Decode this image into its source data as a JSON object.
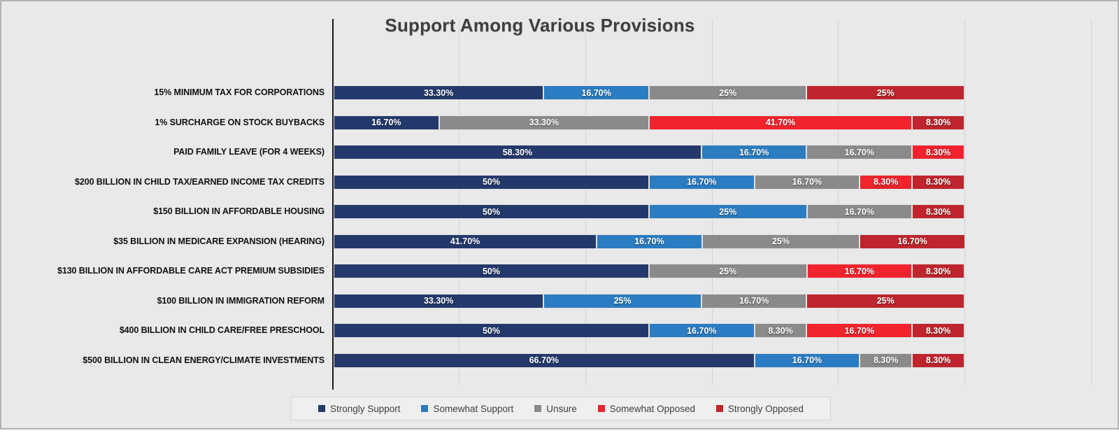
{
  "chart_data": {
    "type": "bar",
    "stacked": true,
    "orientation": "horizontal",
    "title": "Support Among Various Provisions",
    "xlim": [
      0,
      120
    ],
    "gridline_interval_pct": 20,
    "grid": true,
    "legend_position": "bottom",
    "categories": [
      "15% MINIMUM TAX FOR CORPORATIONS",
      "1% SURCHARGE ON STOCK BUYBACKS",
      "PAID FAMILY LEAVE (FOR 4 WEEKS)",
      "$200 BILLION IN CHILD TAX/EARNED INCOME TAX CREDITS",
      "$150 BILLION IN AFFORDABLE HOUSING",
      "$35 BILLION IN MEDICARE EXPANSION (HEARING)",
      "$130 BILLION IN AFFORDABLE CARE ACT PREMIUM SUBSIDIES",
      "$100 BILLION IN IMMIGRATION REFORM",
      "$400 BILLION IN CHILD CARE/FREE PRESCHOOL",
      "$500 BILLION IN CLEAN ENERGY/CLIMATE INVESTMENTS"
    ],
    "series": [
      {
        "name": "Strongly Support",
        "color": "#24396B",
        "values": [
          33.3,
          16.7,
          58.3,
          50,
          50,
          41.7,
          50,
          33.3,
          50,
          66.7
        ],
        "labels": [
          "33.30%",
          "16.70%",
          "58.30%",
          "50%",
          "50%",
          "41.70%",
          "50%",
          "33.30%",
          "50%",
          "66.70%"
        ]
      },
      {
        "name": "Somewhat Support",
        "color": "#2B7CC1",
        "values": [
          16.7,
          0,
          16.7,
          16.7,
          25,
          16.7,
          0,
          25,
          16.7,
          16.7
        ],
        "labels": [
          "16.70%",
          "",
          "16.70%",
          "16.70%",
          "25%",
          "16.70%",
          "",
          "25%",
          "16.70%",
          "16.70%"
        ]
      },
      {
        "name": "Unsure",
        "color": "#8A8A8A",
        "values": [
          25,
          33.3,
          16.7,
          16.7,
          16.7,
          25,
          25,
          16.7,
          8.3,
          8.3
        ],
        "labels": [
          "25%",
          "33.30%",
          "16.70%",
          "16.70%",
          "16.70%",
          "25%",
          "25%",
          "16.70%",
          "8.30%",
          "8.30%"
        ]
      },
      {
        "name": "Somewhat Opposed",
        "color": "#F1232D",
        "values": [
          0,
          41.7,
          8.3,
          8.3,
          0,
          0,
          16.7,
          0,
          16.7,
          0
        ],
        "labels": [
          "",
          "41.70%",
          "8.30%",
          "8.30%",
          "",
          "",
          "16.70%",
          "",
          "16.70%",
          ""
        ]
      },
      {
        "name": "Strongly Opposed",
        "color": "#BE252C",
        "values": [
          25,
          8.3,
          0,
          8.3,
          8.3,
          16.7,
          8.3,
          25,
          8.3,
          8.3
        ],
        "labels": [
          "25%",
          "8.30%",
          "",
          "8.30%",
          "8.30%",
          "16.70%",
          "8.30%",
          "25%",
          "8.30%",
          "8.30%"
        ]
      }
    ]
  },
  "legend": {
    "items": [
      "Strongly Support",
      "Somewhat Support",
      "Unsure",
      "Somewhat Opposed",
      "Strongly Opposed"
    ]
  }
}
